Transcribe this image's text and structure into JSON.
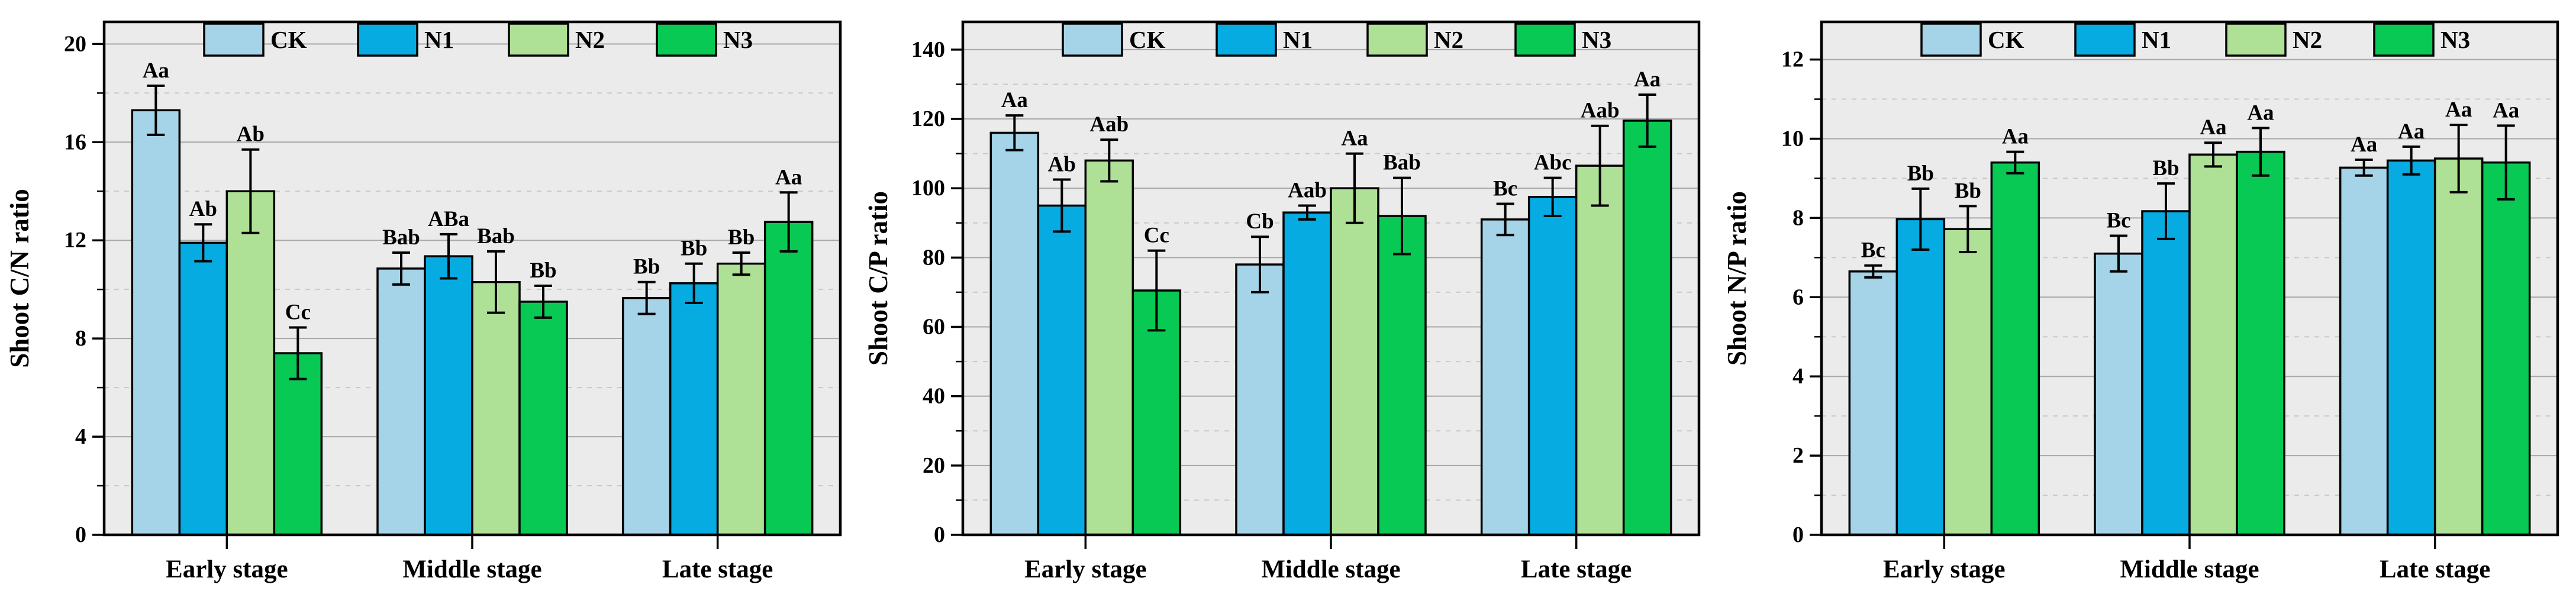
{
  "figure": {
    "background": "#ffffff",
    "plot_background": "#ebebeb",
    "axis_color": "#000000",
    "major_gridline_color": "#a8a8a8",
    "minor_gridline_color": "#c9c9c9",
    "error_bar_color": "#000000",
    "text_color": "#000000"
  },
  "legend": {
    "labels": [
      "CK",
      "N1",
      "N2",
      "N3"
    ],
    "position": "top-inside"
  },
  "series_colors": {
    "CK": "#a5d3e8",
    "N1": "#06abe2",
    "N2": "#aee096",
    "N3": "#08c953"
  },
  "chart_data": [
    {
      "type": "bar",
      "title": "",
      "xlabel": "",
      "ylabel": "Shoot C/N ratio",
      "categories": [
        "Early stage",
        "Middle stage",
        "Late stage"
      ],
      "ylim": [
        0,
        20.9
      ],
      "yticks_major": [
        0,
        4,
        8,
        12,
        16,
        20
      ],
      "ytick_minor_step": 2,
      "grid": {
        "major": "solid",
        "minor": "dashed",
        "direction": "horizontal"
      },
      "legend_position": "top-inside",
      "series": [
        {
          "name": "CK",
          "color": "#a5d3e8",
          "values": [
            17.3,
            10.85,
            9.65
          ],
          "errors": [
            1.0,
            0.65,
            0.65
          ],
          "sig_labels": [
            "Aa",
            "Bab",
            "Bb"
          ]
        },
        {
          "name": "N1",
          "color": "#06abe2",
          "values": [
            11.9,
            11.35,
            10.25
          ],
          "errors": [
            0.75,
            0.9,
            0.8
          ],
          "sig_labels": [
            "Ab",
            "ABa",
            "Bb"
          ]
        },
        {
          "name": "N2",
          "color": "#aee096",
          "values": [
            14.0,
            10.3,
            11.05
          ],
          "errors": [
            1.7,
            1.25,
            0.45
          ],
          "sig_labels": [
            "Ab",
            "Bab",
            "Bb"
          ]
        },
        {
          "name": "N3",
          "color": "#08c953",
          "values": [
            7.4,
            9.5,
            12.75
          ],
          "errors": [
            1.05,
            0.65,
            1.2
          ],
          "sig_labels": [
            "Cc",
            "Bb",
            "Aa"
          ]
        }
      ]
    },
    {
      "type": "bar",
      "title": "",
      "xlabel": "",
      "ylabel": "Shoot C/P ratio",
      "categories": [
        "Early stage",
        "Middle stage",
        "Late stage"
      ],
      "ylim": [
        0,
        148
      ],
      "yticks_major": [
        0,
        20,
        40,
        60,
        80,
        100,
        120,
        140
      ],
      "ytick_minor_step": 10,
      "grid": {
        "major": "solid",
        "minor": "dashed",
        "direction": "horizontal"
      },
      "legend_position": "top-inside",
      "series": [
        {
          "name": "CK",
          "color": "#a5d3e8",
          "values": [
            116,
            78,
            91
          ],
          "errors": [
            5,
            8,
            4.5
          ],
          "sig_labels": [
            "Aa",
            "Cb",
            "Bc"
          ]
        },
        {
          "name": "N1",
          "color": "#06abe2",
          "values": [
            95,
            93,
            97.5
          ],
          "errors": [
            7.5,
            2,
            5.5
          ],
          "sig_labels": [
            "Ab",
            "Aab",
            "Abc"
          ]
        },
        {
          "name": "N2",
          "color": "#aee096",
          "values": [
            108,
            100,
            106.5
          ],
          "errors": [
            6,
            10,
            11.5
          ],
          "sig_labels": [
            "Aab",
            "Aa",
            "Aab"
          ]
        },
        {
          "name": "N3",
          "color": "#08c953",
          "values": [
            70.5,
            92,
            119.5
          ],
          "errors": [
            11.5,
            11,
            7.5
          ],
          "sig_labels": [
            "Cc",
            "Bab",
            "Aa"
          ]
        }
      ]
    },
    {
      "type": "bar",
      "title": "",
      "xlabel": "",
      "ylabel": "Shoot N/P ratio",
      "categories": [
        "Early stage",
        "Middle stage",
        "Late stage"
      ],
      "ylim": [
        0,
        12.95
      ],
      "yticks_major": [
        0,
        2,
        4,
        6,
        8,
        10,
        12
      ],
      "ytick_minor_step": 1,
      "grid": {
        "major": "solid",
        "minor": "dashed",
        "direction": "horizontal"
      },
      "legend_position": "top-inside",
      "series": [
        {
          "name": "CK",
          "color": "#a5d3e8",
          "values": [
            6.65,
            7.1,
            9.27
          ],
          "errors": [
            0.15,
            0.45,
            0.2
          ],
          "sig_labels": [
            "Bc",
            "Bc",
            "Aa"
          ]
        },
        {
          "name": "N1",
          "color": "#06abe2",
          "values": [
            7.97,
            8.17,
            9.45
          ],
          "errors": [
            0.77,
            0.7,
            0.35
          ],
          "sig_labels": [
            "Bb",
            "Bb",
            "Aa"
          ]
        },
        {
          "name": "N2",
          "color": "#aee096",
          "values": [
            7.72,
            9.6,
            9.5
          ],
          "errors": [
            0.58,
            0.3,
            0.85
          ],
          "sig_labels": [
            "Bb",
            "Aa",
            "Aa"
          ]
        },
        {
          "name": "N3",
          "color": "#08c953",
          "values": [
            9.4,
            9.67,
            9.4
          ],
          "errors": [
            0.27,
            0.6,
            0.93
          ],
          "sig_labels": [
            "Aa",
            "Aa",
            "Aa"
          ]
        }
      ]
    }
  ]
}
